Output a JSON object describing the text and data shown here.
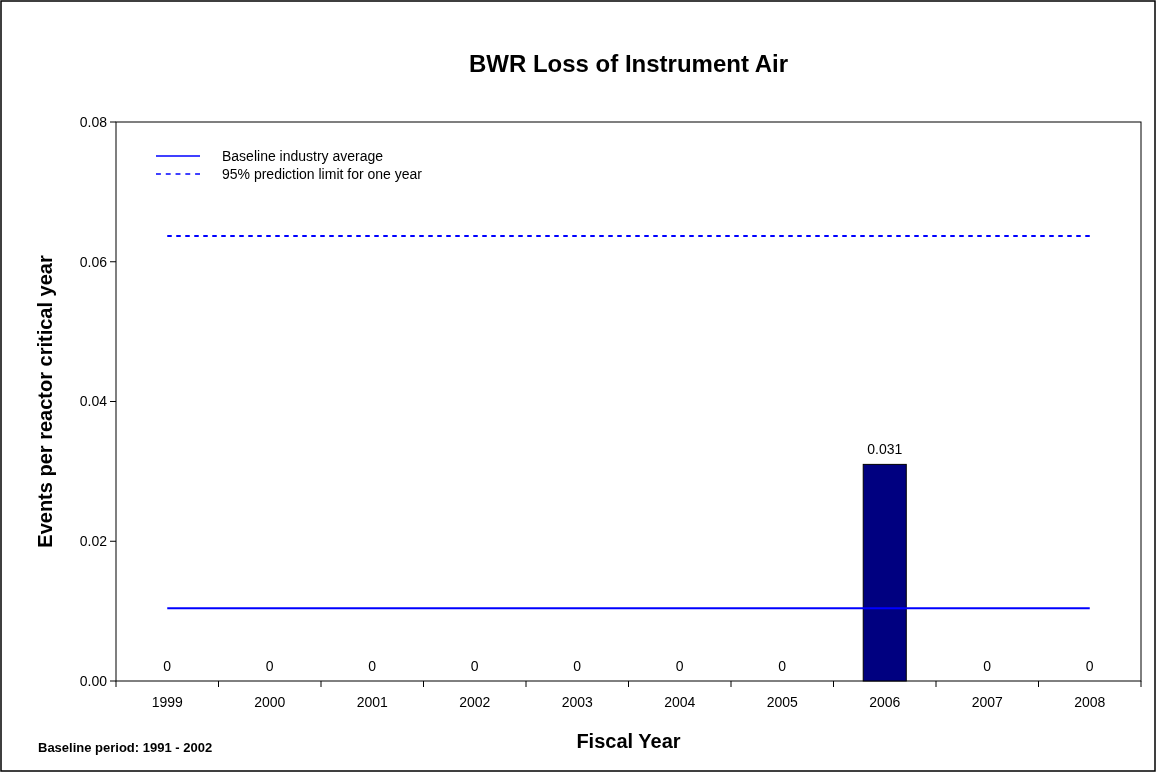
{
  "chart_data": {
    "type": "bar",
    "title": "BWR Loss of Instrument Air",
    "xlabel": "Fiscal Year",
    "ylabel": "Events per reactor critical year",
    "categories": [
      "1999",
      "2000",
      "2001",
      "2002",
      "2003",
      "2004",
      "2005",
      "2006",
      "2007",
      "2008"
    ],
    "series": [
      {
        "color": "#000080",
        "values": [
          0,
          0,
          0,
          0,
          0,
          0,
          0,
          0.031,
          0,
          0
        ],
        "value_labels": [
          "0",
          "0",
          "0",
          "0",
          "0",
          "0",
          "0",
          "0.031",
          "0",
          "0"
        ]
      },
      {
        "type": "line",
        "name": "Baseline industry average",
        "color": "#0000ff",
        "line_style": "solid",
        "values": [
          0.0104,
          0.0104,
          0.0104,
          0.0104,
          0.0104,
          0.0104,
          0.0104,
          0.0104,
          0.0104,
          0.0104
        ]
      },
      {
        "type": "line",
        "name": "95% prediction limit for one year",
        "color": "#0000ff",
        "line_style": "dashed",
        "values": [
          0.0637,
          0.0637,
          0.0637,
          0.0637,
          0.0637,
          0.0637,
          0.0637,
          0.0637,
          0.0637,
          0.0637
        ]
      }
    ],
    "ylim": [
      0,
      0.08
    ],
    "yticks": [
      {
        "value": 0,
        "label": "0.00"
      },
      {
        "value": 0.02,
        "label": "0.02"
      },
      {
        "value": 0.04,
        "label": "0.04"
      },
      {
        "value": 0.06,
        "label": "0.06"
      },
      {
        "value": 0.08,
        "label": "0.08"
      }
    ],
    "grid": false,
    "legend": "top left",
    "annotations": [
      "Baseline period:  1991 - 2002"
    ]
  }
}
